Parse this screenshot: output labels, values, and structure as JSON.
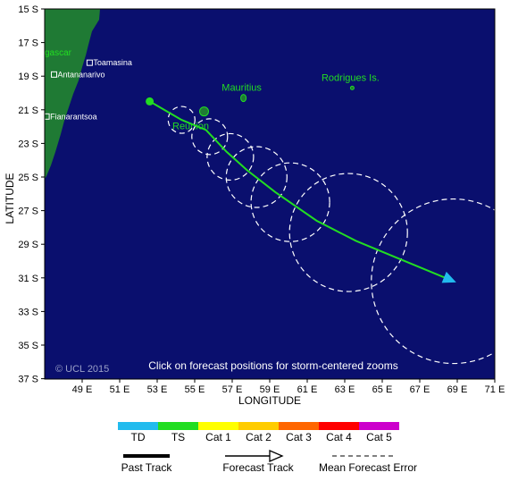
{
  "map": {
    "lat_labels": [
      "15 S",
      "17 S",
      "19 S",
      "21 S",
      "23 S",
      "25 S",
      "27 S",
      "29 S",
      "31 S",
      "33 S",
      "35 S",
      "37 S"
    ],
    "lon_labels": [
      "49 E",
      "51 E",
      "53 E",
      "55 E",
      "57 E",
      "59 E",
      "61 E",
      "63 E",
      "65 E",
      "67 E",
      "69 E",
      "71 E",
      "73 E"
    ],
    "y_axis_title": "LATITUDE",
    "x_axis_title": "LONGITUDE",
    "copyright": "© UCL 2015",
    "instruction": "Click on forecast positions for storm-centered zooms",
    "places": [
      {
        "name": "Toamasina",
        "lat": -18.2,
        "lon": 49.4
      },
      {
        "name": "Antananarivo",
        "lat": -18.9,
        "lon": 47.5
      },
      {
        "name": "Fianarantsoa",
        "lat": -21.4,
        "lon": 47.1
      }
    ],
    "country_label": "gascar",
    "islands": [
      {
        "name": "Mauritius",
        "lat": -20.3,
        "lon": 57.6
      },
      {
        "name": "Rodrigues Is.",
        "lat": -19.7,
        "lon": 63.4
      },
      {
        "name": "Reunion",
        "lat": -21.1,
        "lon": 55.5
      }
    ],
    "forecast_track": [
      {
        "lat": -20.5,
        "lon": 52.6
      },
      {
        "lat": -21.6,
        "lon": 54.3
      },
      {
        "lat": -22.2,
        "lon": 55.6
      },
      {
        "lat": -23.5,
        "lon": 56.7
      },
      {
        "lat": -24.6,
        "lon": 57.8
      },
      {
        "lat": -25.9,
        "lon": 59.3
      },
      {
        "lat": -27.6,
        "lon": 61.5
      },
      {
        "lat": -28.8,
        "lon": 63.6
      },
      {
        "lat": -31.2,
        "lon": 68.8
      }
    ],
    "error_circles": [
      {
        "lat": -21.6,
        "lon": 54.3,
        "radius_deg": 0.75
      },
      {
        "lat": -22.6,
        "lon": 55.8,
        "radius_deg": 1.0
      },
      {
        "lat": -23.8,
        "lon": 56.9,
        "radius_deg": 1.3
      },
      {
        "lat": -25.0,
        "lon": 58.3,
        "radius_deg": 1.7
      },
      {
        "lat": -26.5,
        "lon": 60.1,
        "radius_deg": 2.2
      },
      {
        "lat": -28.3,
        "lon": 63.2,
        "radius_deg": 3.3
      },
      {
        "lat": -31.2,
        "lon": 68.8,
        "radius_deg": 4.6
      }
    ],
    "colors": {
      "ocean": "#0a0f6e",
      "land": "#1f7a34",
      "track": "#22dd22",
      "island_text": "#22dd22"
    }
  },
  "legend": {
    "categories": [
      {
        "label": "TD",
        "color": "#22bbee"
      },
      {
        "label": "TS",
        "color": "#22dd22"
      },
      {
        "label": "Cat 1",
        "color": "#ffff00"
      },
      {
        "label": "Cat 2",
        "color": "#ffcc00"
      },
      {
        "label": "Cat 3",
        "color": "#ff6600"
      },
      {
        "label": "Cat 4",
        "color": "#ff0000"
      },
      {
        "label": "Cat 5",
        "color": "#cc00cc"
      }
    ],
    "past_track": "Past Track",
    "forecast_track": "Forecast Track",
    "mean_error": "Mean Forecast Error"
  }
}
